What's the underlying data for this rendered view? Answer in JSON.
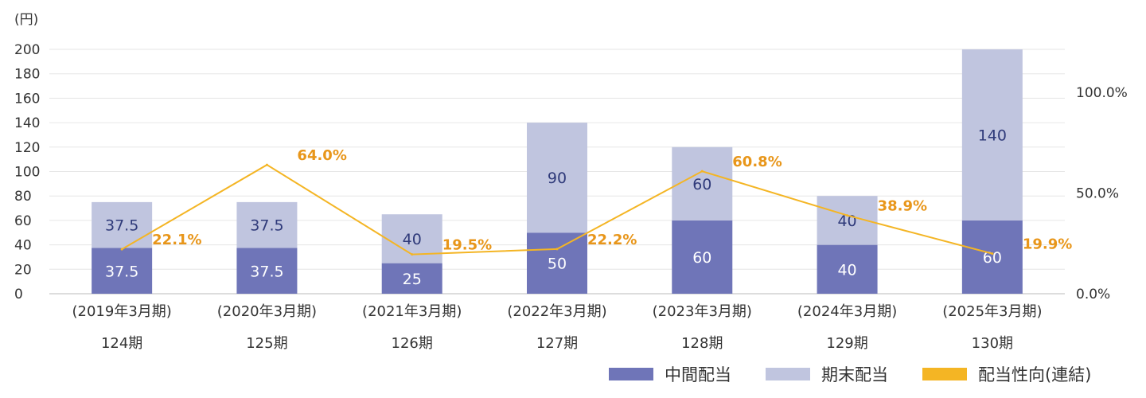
{
  "chart_data": {
    "type": "bar",
    "stacked": true,
    "unit_label": "(円)",
    "categories": [
      {
        "period": "(2019年3月期)",
        "term": "124期"
      },
      {
        "period": "(2020年3月期)",
        "term": "125期"
      },
      {
        "period": "(2021年3月期)",
        "term": "126期"
      },
      {
        "period": "(2022年3月期)",
        "term": "127期"
      },
      {
        "period": "(2023年3月期)",
        "term": "128期"
      },
      {
        "period": "(2024年3月期)",
        "term": "129期"
      },
      {
        "period": "(2025年3月期)",
        "term": "130期"
      }
    ],
    "series": [
      {
        "name": "中間配当",
        "color": "#6f75b8",
        "label_color": "#ffffff",
        "values": [
          37.5,
          37.5,
          25,
          50,
          60,
          40,
          60
        ],
        "labels": [
          "37.5",
          "37.5",
          "25",
          "50",
          "60",
          "40",
          "60"
        ]
      },
      {
        "name": "期末配当",
        "color": "#c0c5df",
        "label_color": "#2f3a7a",
        "values": [
          37.5,
          37.5,
          40,
          90,
          60,
          40,
          140
        ],
        "labels": [
          "37.5",
          "37.5",
          "40",
          "90",
          "60",
          "40",
          "140"
        ]
      }
    ],
    "line_series": {
      "name": "配当性向(連結)",
      "color": "#f4b524",
      "label_color": "#e8961a",
      "values": [
        22.1,
        64.0,
        19.5,
        22.2,
        60.8,
        38.9,
        19.9
      ],
      "labels": [
        "22.1%",
        "64.0%",
        "19.5%",
        "22.2%",
        "60.8%",
        "38.9%",
        "19.9%"
      ]
    },
    "y_left": {
      "min": 0,
      "max": 200,
      "ticks": [
        "0",
        "20",
        "40",
        "60",
        "80",
        "100",
        "120",
        "140",
        "160",
        "180",
        "200"
      ]
    },
    "y_right": {
      "min": 0,
      "max": 100,
      "ticks": [
        "0.0%",
        "50.0%",
        "100.0%"
      ]
    },
    "grid": true,
    "legend_position": "bottom-right"
  }
}
